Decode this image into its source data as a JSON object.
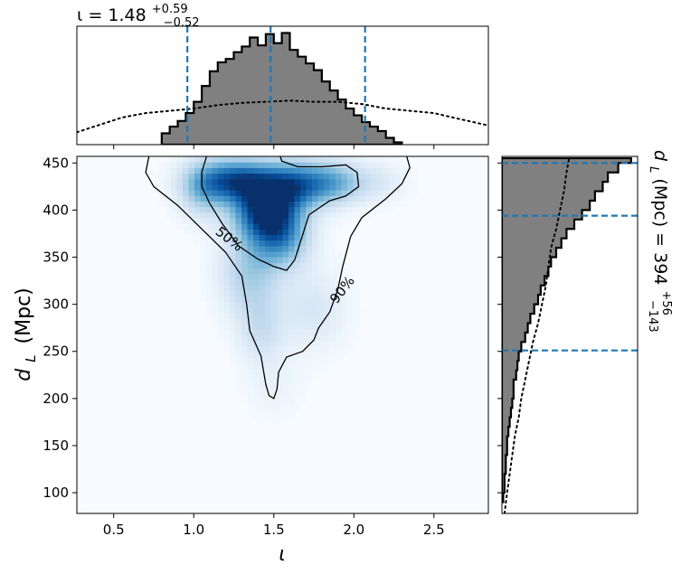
{
  "chart_data": [
    {
      "type": "heatmap",
      "role": "joint-posterior",
      "xlabel": "ι",
      "ylabel_main": "d",
      "ylabel_sub": "L",
      "ylabel_unit": "(Mpc)",
      "xlim": [
        0.27,
        2.84
      ],
      "ylim": [
        78,
        457
      ],
      "xticks": [
        0.5,
        1.0,
        1.5,
        2.0,
        2.5
      ],
      "xtick_labels": [
        "0.5",
        "1.0",
        "1.5",
        "2.0",
        "2.5"
      ],
      "yticks": [
        100,
        150,
        200,
        250,
        300,
        350,
        400,
        450
      ],
      "ytick_labels": [
        "100",
        "150",
        "200",
        "250",
        "300",
        "350",
        "400",
        "450"
      ],
      "colormap": [
        "#f7fbff",
        "#deebf7",
        "#c6dbef",
        "#9ecae1",
        "#6baed6",
        "#4292c6",
        "#2171b5",
        "#08519c",
        "#08306b"
      ],
      "density_blobs": [
        {
          "x": 1.45,
          "y": 400,
          "sx": 0.14,
          "sy": 22,
          "w": 1.0
        },
        {
          "x": 1.25,
          "y": 432,
          "sx": 0.17,
          "sy": 16,
          "w": 0.85
        },
        {
          "x": 1.65,
          "y": 428,
          "sx": 0.16,
          "sy": 17,
          "w": 0.75
        },
        {
          "x": 1.9,
          "y": 430,
          "sx": 0.12,
          "sy": 15,
          "w": 0.35
        },
        {
          "x": 1.55,
          "y": 370,
          "sx": 0.12,
          "sy": 22,
          "w": 0.5
        },
        {
          "x": 1.35,
          "y": 335,
          "sx": 0.13,
          "sy": 30,
          "w": 0.35
        },
        {
          "x": 1.42,
          "y": 275,
          "sx": 0.1,
          "sy": 25,
          "w": 0.22
        },
        {
          "x": 1.75,
          "y": 295,
          "sx": 0.14,
          "sy": 30,
          "w": 0.16
        },
        {
          "x": 2.15,
          "y": 430,
          "sx": 0.12,
          "sy": 15,
          "w": 0.14
        },
        {
          "x": 1.5,
          "y": 215,
          "sx": 0.12,
          "sy": 25,
          "w": 0.07
        },
        {
          "x": 1.05,
          "y": 420,
          "sx": 0.1,
          "sy": 20,
          "w": 0.3
        }
      ],
      "contours": [
        {
          "label": "90%",
          "label_x": 1.93,
          "label_y": 315,
          "points": [
            [
              0.72,
              457
            ],
            [
              0.7,
              440
            ],
            [
              0.75,
              425
            ],
            [
              0.9,
              405
            ],
            [
              1.05,
              380
            ],
            [
              1.2,
              355
            ],
            [
              1.3,
              330
            ],
            [
              1.33,
              300
            ],
            [
              1.35,
              272
            ],
            [
              1.42,
              245
            ],
            [
              1.45,
              215
            ],
            [
              1.47,
              203
            ],
            [
              1.5,
              200
            ],
            [
              1.52,
              210
            ],
            [
              1.53,
              228
            ],
            [
              1.58,
              244
            ],
            [
              1.68,
              250
            ],
            [
              1.75,
              262
            ],
            [
              1.78,
              275
            ],
            [
              1.85,
              292
            ],
            [
              1.9,
              316
            ],
            [
              1.93,
              340
            ],
            [
              1.98,
              372
            ],
            [
              2.05,
              392
            ],
            [
              2.2,
              412
            ],
            [
              2.3,
              428
            ],
            [
              2.35,
              445
            ],
            [
              2.33,
              457
            ]
          ]
        },
        {
          "label": "50%",
          "label_x": 1.22,
          "label_y": 369,
          "points": [
            [
              1.08,
              457
            ],
            [
              1.05,
              440
            ],
            [
              1.05,
              425
            ],
            [
              1.1,
              407
            ],
            [
              1.18,
              385
            ],
            [
              1.28,
              362
            ],
            [
              1.4,
              348
            ],
            [
              1.5,
              340
            ],
            [
              1.58,
              336
            ],
            [
              1.63,
              347
            ],
            [
              1.66,
              363
            ],
            [
              1.72,
              395
            ],
            [
              1.85,
              410
            ],
            [
              1.95,
              415
            ],
            [
              2.03,
              425
            ],
            [
              2.02,
              440
            ],
            [
              1.95,
              448
            ],
            [
              1.8,
              446
            ],
            [
              1.65,
              446
            ],
            [
              1.55,
              452
            ],
            [
              1.54,
              457
            ]
          ]
        }
      ]
    },
    {
      "type": "histogram",
      "role": "marginal-iota",
      "title_text": "ι = 1.48",
      "title_sup": "+0.59",
      "title_sub": "−0.52",
      "bin_edges": [
        0.8,
        0.85,
        0.9,
        0.95,
        1.0,
        1.05,
        1.1,
        1.15,
        1.2,
        1.25,
        1.3,
        1.35,
        1.4,
        1.45,
        1.5,
        1.55,
        1.6,
        1.65,
        1.7,
        1.75,
        1.8,
        1.85,
        1.9,
        1.95,
        2.0,
        2.05,
        2.1,
        2.15,
        2.2,
        2.25,
        2.3
      ],
      "counts": [
        0.1,
        0.16,
        0.21,
        0.28,
        0.38,
        0.52,
        0.65,
        0.73,
        0.76,
        0.82,
        0.87,
        0.95,
        0.88,
        0.98,
        0.9,
        0.99,
        0.84,
        0.78,
        0.72,
        0.66,
        0.56,
        0.48,
        0.4,
        0.32,
        0.26,
        0.2,
        0.16,
        0.12,
        0.06,
        0.02
      ],
      "prior_curve": {
        "x": [
          0.27,
          0.4,
          0.55,
          0.7,
          0.85,
          1.0,
          1.15,
          1.3,
          1.45,
          1.6,
          1.75,
          1.9,
          2.05,
          2.2,
          2.35,
          2.5,
          2.65,
          2.84
        ],
        "y": [
          0.11,
          0.17,
          0.24,
          0.28,
          0.3,
          0.32,
          0.35,
          0.37,
          0.38,
          0.39,
          0.38,
          0.38,
          0.36,
          0.32,
          0.3,
          0.28,
          0.23,
          0.17
        ]
      },
      "quantile_lines": [
        0.96,
        1.48,
        2.07
      ],
      "xlim": [
        0.27,
        2.84
      ],
      "ylim": [
        0,
        1.05
      ]
    },
    {
      "type": "histogram",
      "role": "marginal-distance",
      "orientation": "horizontal",
      "label_main": "d",
      "label_sub": "L",
      "label_rest": " (Mpc) = 394",
      "label_sup": "+56",
      "label_subscript": "−143",
      "bin_edges": [
        90,
        100,
        110,
        120,
        130,
        140,
        150,
        160,
        170,
        180,
        190,
        200,
        210,
        220,
        230,
        240,
        250,
        260,
        270,
        280,
        290,
        300,
        310,
        320,
        330,
        340,
        350,
        360,
        370,
        380,
        390,
        400,
        410,
        420,
        430,
        440,
        450,
        455
      ],
      "counts": [
        0.01,
        0.02,
        0.02,
        0.03,
        0.03,
        0.04,
        0.04,
        0.05,
        0.06,
        0.07,
        0.08,
        0.09,
        0.09,
        0.11,
        0.12,
        0.13,
        0.15,
        0.18,
        0.2,
        0.22,
        0.25,
        0.28,
        0.3,
        0.33,
        0.36,
        0.38,
        0.42,
        0.46,
        0.5,
        0.56,
        0.62,
        0.68,
        0.72,
        0.78,
        0.82,
        0.9,
        1.0
      ],
      "prior_curve": {
        "y": [
          78,
          100,
          120,
          140,
          160,
          180,
          200,
          220,
          240,
          260,
          280,
          300,
          320,
          340,
          360,
          380,
          400,
          420,
          440,
          455
        ],
        "x": [
          0.02,
          0.04,
          0.06,
          0.08,
          0.1,
          0.13,
          0.15,
          0.18,
          0.21,
          0.24,
          0.28,
          0.31,
          0.34,
          0.36,
          0.38,
          0.42,
          0.45,
          0.48,
          0.5,
          0.52
        ]
      },
      "quantile_lines": [
        251,
        394,
        450
      ],
      "ylim": [
        78,
        457
      ],
      "xlim": [
        0,
        1.05
      ]
    }
  ],
  "colors": {
    "hist_fill": "#808080",
    "hist_edge": "#000000",
    "quantile": "#1f77b4",
    "contour": "#000000",
    "prior": "#000000"
  }
}
